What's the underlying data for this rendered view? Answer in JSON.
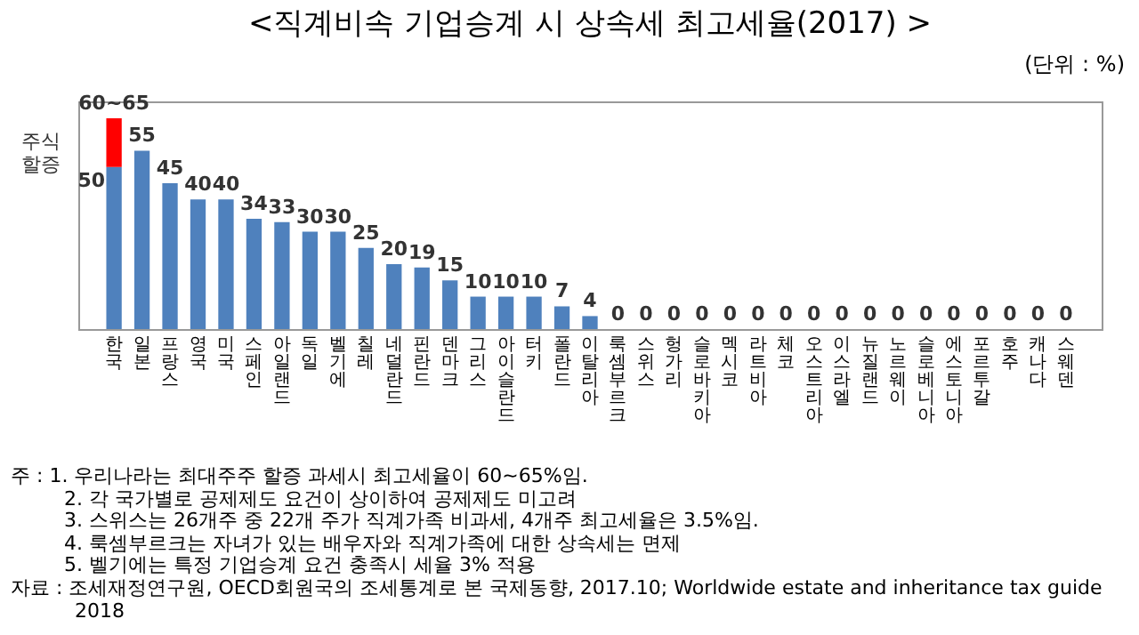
{
  "chart_data": {
    "type": "bar",
    "stacked": true,
    "title": "<직계비속 기업승계 시 상속세 최고세율(2017) >",
    "categories": [
      "한국",
      "일본",
      "프랑스",
      "영국",
      "미국",
      "스페인",
      "아일랜드",
      "독일",
      "벨기에",
      "칠레",
      "네덜란드",
      "핀란드",
      "덴마크",
      "그리스",
      "아이슬란드",
      "터키",
      "폴란드",
      "이탈리아",
      "룩셈부르크",
      "스위스",
      "헝가리",
      "슬로바키아",
      "멕시코",
      "라트비아",
      "체코",
      "오스트리아",
      "이스라엘",
      "뉴질랜드",
      "노르웨이",
      "슬로베니아",
      "에스토니아",
      "포르투갈",
      "호주",
      "캐나다",
      "스웨덴"
    ],
    "series": [
      {
        "color": "#4f81bd",
        "values": [
          50,
          55,
          45,
          40,
          40,
          34,
          33,
          30,
          30,
          25,
          20,
          19,
          15,
          10,
          10,
          10,
          7,
          4,
          0,
          0,
          0,
          0,
          0,
          0,
          0,
          0,
          0,
          0,
          0,
          0,
          0,
          0,
          0,
          0,
          0
        ],
        "value_labels": [
          "50",
          "55",
          "45",
          "40",
          "40",
          "34",
          "33",
          "30",
          "30",
          "25",
          "20",
          "19",
          "15",
          "10",
          "10",
          "10",
          "7",
          "4",
          "0",
          "0",
          "0",
          "0",
          "0",
          "0",
          "0",
          "0",
          "0",
          "0",
          "0",
          "0",
          "0",
          "0",
          "0",
          "0",
          "0"
        ]
      },
      {
        "name": "주식 할증",
        "color": "#ff0000",
        "values": [
          15,
          null,
          null,
          null,
          null,
          null,
          null,
          null,
          null,
          null,
          null,
          null,
          null,
          null,
          null,
          null,
          null,
          null,
          null,
          null,
          null,
          null,
          null,
          null,
          null,
          null,
          null,
          null,
          null,
          null,
          null,
          null,
          null,
          null,
          null
        ],
        "value_labels": [
          null,
          null,
          null,
          null,
          null,
          null,
          null,
          null,
          null,
          null,
          null,
          null,
          null,
          null,
          null,
          null,
          null,
          null,
          null,
          null,
          null,
          null,
          null,
          null,
          null,
          null,
          null,
          null,
          null,
          null,
          null,
          null,
          null,
          null,
          null
        ]
      }
    ],
    "annotations": [
      "(단위 : %)",
      {
        "text": "60~65",
        "x": "한국",
        "y": 65
      },
      "주 : 1. 우리나라는 최대주주 할증 과세시 최고세율이 60~65%임.",
      "2. 각 국가별로 공제제도 요건이 상이하여 공제제도 미고려",
      "3. 스위스는 26개주 중 22개 주가 직계가족 비과세, 4개주 최고세율은 3.5%임.",
      "4. 룩셈부르크는 자녀가 있는 배우자와 직계가족에 대한 상속세는 면제",
      "5. 벨기에는 특정 기업승계 요건 충족시 세율 3% 적용",
      "자료 : 조세재정연구원, OECD회원국의 조세통계로 본 국제동향, 2017.10; Worldwide estate and inheritance tax guide 2018"
    ]
  }
}
